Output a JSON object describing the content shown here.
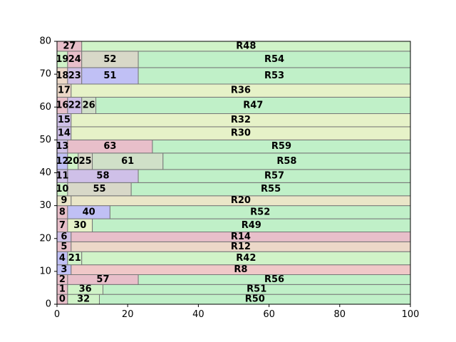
{
  "chart_data": {
    "type": "treemap",
    "title": "",
    "xlabel": "",
    "ylabel": "",
    "xlim": [
      0,
      100
    ],
    "ylim": [
      0,
      80
    ],
    "xticks": [
      "0",
      "20",
      "40",
      "60",
      "80",
      "100"
    ],
    "yticks": [
      "0",
      "10",
      "20",
      "30",
      "40",
      "50",
      "60",
      "70",
      "80"
    ],
    "palette": {
      "pink": "#e8bfca",
      "lavender": "#cfc0e8",
      "blue": "#c0c0f5",
      "green": "#c0f0c8",
      "ltgreen": "#d0f3c8",
      "salmon": "#f0c8c8",
      "peach": "#ecd8c8",
      "yellow": "#e6f2c8",
      "beige": "#eae6c8",
      "gray": "#d8d8c8",
      "sage": "#d0e0c8"
    },
    "rects": [
      {
        "label": "0",
        "x0": 0,
        "x1": 3,
        "y0": 0,
        "y1": 3,
        "color": "pink"
      },
      {
        "label": "32",
        "x0": 3,
        "x1": 12,
        "y0": 0,
        "y1": 3,
        "color": "ltgreen"
      },
      {
        "label": "R50",
        "x0": 12,
        "x1": 100,
        "y0": 0,
        "y1": 3,
        "color": "green"
      },
      {
        "label": "1",
        "x0": 0,
        "x1": 3,
        "y0": 3,
        "y1": 6,
        "color": "pink"
      },
      {
        "label": "36",
        "x0": 3,
        "x1": 13,
        "y0": 3,
        "y1": 6,
        "color": "ltgreen"
      },
      {
        "label": "R51",
        "x0": 13,
        "x1": 100,
        "y0": 3,
        "y1": 6,
        "color": "green"
      },
      {
        "label": "2",
        "x0": 0,
        "x1": 3,
        "y0": 6,
        "y1": 9,
        "color": "pink"
      },
      {
        "label": "57",
        "x0": 3,
        "x1": 23,
        "y0": 6,
        "y1": 9,
        "color": "pink"
      },
      {
        "label": "R56",
        "x0": 23,
        "x1": 100,
        "y0": 6,
        "y1": 9,
        "color": "green"
      },
      {
        "label": "3",
        "x0": 0,
        "x1": 4,
        "y0": 9,
        "y1": 12,
        "color": "blue"
      },
      {
        "label": "R8",
        "x0": 4,
        "x1": 100,
        "y0": 9,
        "y1": 12,
        "color": "salmon"
      },
      {
        "label": "4",
        "x0": 0,
        "x1": 3,
        "y0": 12,
        "y1": 16,
        "color": "blue"
      },
      {
        "label": "21",
        "x0": 3,
        "x1": 7,
        "y0": 12,
        "y1": 16,
        "color": "ltgreen"
      },
      {
        "label": "R42",
        "x0": 7,
        "x1": 100,
        "y0": 12,
        "y1": 16,
        "color": "ltgreen"
      },
      {
        "label": "5",
        "x0": 0,
        "x1": 4,
        "y0": 16,
        "y1": 19,
        "color": "pink"
      },
      {
        "label": "R12",
        "x0": 4,
        "x1": 100,
        "y0": 16,
        "y1": 19,
        "color": "peach"
      },
      {
        "label": "6",
        "x0": 0,
        "x1": 4,
        "y0": 19,
        "y1": 22,
        "color": "lavender"
      },
      {
        "label": "R14",
        "x0": 4,
        "x1": 100,
        "y0": 19,
        "y1": 22,
        "color": "pink"
      },
      {
        "label": "7",
        "x0": 0,
        "x1": 3,
        "y0": 22,
        "y1": 26,
        "color": "pink"
      },
      {
        "label": "30",
        "x0": 3,
        "x1": 10,
        "y0": 22,
        "y1": 26,
        "color": "yellow"
      },
      {
        "label": "R49",
        "x0": 10,
        "x1": 100,
        "y0": 22,
        "y1": 26,
        "color": "green"
      },
      {
        "label": "8",
        "x0": 0,
        "x1": 3,
        "y0": 26,
        "y1": 30,
        "color": "pink"
      },
      {
        "label": "40",
        "x0": 3,
        "x1": 15,
        "y0": 26,
        "y1": 30,
        "color": "blue"
      },
      {
        "label": "R52",
        "x0": 15,
        "x1": 100,
        "y0": 26,
        "y1": 30,
        "color": "green"
      },
      {
        "label": "9",
        "x0": 0,
        "x1": 4,
        "y0": 30,
        "y1": 33,
        "color": "beige"
      },
      {
        "label": "R20",
        "x0": 4,
        "x1": 100,
        "y0": 30,
        "y1": 33,
        "color": "beige"
      },
      {
        "label": "10",
        "x0": 0,
        "x1": 3,
        "y0": 33,
        "y1": 37,
        "color": "ltgreen"
      },
      {
        "label": "55",
        "x0": 3,
        "x1": 21,
        "y0": 33,
        "y1": 37,
        "color": "gray"
      },
      {
        "label": "R55",
        "x0": 21,
        "x1": 100,
        "y0": 33,
        "y1": 37,
        "color": "green"
      },
      {
        "label": "11",
        "x0": 0,
        "x1": 3,
        "y0": 37,
        "y1": 41,
        "color": "lavender"
      },
      {
        "label": "58",
        "x0": 3,
        "x1": 23,
        "y0": 37,
        "y1": 41,
        "color": "lavender"
      },
      {
        "label": "R57",
        "x0": 23,
        "x1": 100,
        "y0": 37,
        "y1": 41,
        "color": "green"
      },
      {
        "label": "12",
        "x0": 0,
        "x1": 3,
        "y0": 41,
        "y1": 46,
        "color": "blue"
      },
      {
        "label": "20",
        "x0": 3,
        "x1": 6,
        "y0": 41,
        "y1": 46,
        "color": "ltgreen"
      },
      {
        "label": "25",
        "x0": 6,
        "x1": 10,
        "y0": 41,
        "y1": 46,
        "color": "gray"
      },
      {
        "label": "61",
        "x0": 10,
        "x1": 30,
        "y0": 41,
        "y1": 46,
        "color": "sage"
      },
      {
        "label": "R58",
        "x0": 30,
        "x1": 100,
        "y0": 41,
        "y1": 46,
        "color": "green"
      },
      {
        "label": "13",
        "x0": 0,
        "x1": 3,
        "y0": 46,
        "y1": 50,
        "color": "lavender"
      },
      {
        "label": "63",
        "x0": 3,
        "x1": 27,
        "y0": 46,
        "y1": 50,
        "color": "pink"
      },
      {
        "label": "R59",
        "x0": 27,
        "x1": 100,
        "y0": 46,
        "y1": 50,
        "color": "green"
      },
      {
        "label": "14",
        "x0": 0,
        "x1": 4,
        "y0": 50,
        "y1": 54,
        "color": "lavender"
      },
      {
        "label": "R30",
        "x0": 4,
        "x1": 100,
        "y0": 50,
        "y1": 54,
        "color": "yellow"
      },
      {
        "label": "15",
        "x0": 0,
        "x1": 4,
        "y0": 54,
        "y1": 58,
        "color": "lavender"
      },
      {
        "label": "R32",
        "x0": 4,
        "x1": 100,
        "y0": 54,
        "y1": 58,
        "color": "yellow"
      },
      {
        "label": "16",
        "x0": 0,
        "x1": 3,
        "y0": 58,
        "y1": 63,
        "color": "pink"
      },
      {
        "label": "22",
        "x0": 3,
        "x1": 7,
        "y0": 58,
        "y1": 63,
        "color": "lavender"
      },
      {
        "label": "26",
        "x0": 7,
        "x1": 11,
        "y0": 58,
        "y1": 63,
        "color": "sage"
      },
      {
        "label": "R47",
        "x0": 11,
        "x1": 100,
        "y0": 58,
        "y1": 63,
        "color": "green"
      },
      {
        "label": "17",
        "x0": 0,
        "x1": 4,
        "y0": 63,
        "y1": 67,
        "color": "peach"
      },
      {
        "label": "R36",
        "x0": 4,
        "x1": 100,
        "y0": 63,
        "y1": 67,
        "color": "yellow"
      },
      {
        "label": "18",
        "x0": 0,
        "x1": 3,
        "y0": 67,
        "y1": 72,
        "color": "peach"
      },
      {
        "label": "23",
        "x0": 3,
        "x1": 7,
        "y0": 67,
        "y1": 72,
        "color": "lavender"
      },
      {
        "label": "51",
        "x0": 7,
        "x1": 23,
        "y0": 67,
        "y1": 72,
        "color": "blue"
      },
      {
        "label": "R53",
        "x0": 23,
        "x1": 100,
        "y0": 67,
        "y1": 72,
        "color": "green"
      },
      {
        "label": "19",
        "x0": 0,
        "x1": 3,
        "y0": 72,
        "y1": 77,
        "color": "ltgreen"
      },
      {
        "label": "24",
        "x0": 3,
        "x1": 7,
        "y0": 72,
        "y1": 77,
        "color": "pink"
      },
      {
        "label": "52",
        "x0": 7,
        "x1": 23,
        "y0": 72,
        "y1": 77,
        "color": "gray"
      },
      {
        "label": "R54",
        "x0": 23,
        "x1": 100,
        "y0": 72,
        "y1": 77,
        "color": "green"
      },
      {
        "label": "27",
        "x0": 0,
        "x1": 7,
        "y0": 77,
        "y1": 80,
        "color": "pink"
      },
      {
        "label": "R48",
        "x0": 7,
        "x1": 100,
        "y0": 77,
        "y1": 80,
        "color": "ltgreen"
      }
    ]
  }
}
